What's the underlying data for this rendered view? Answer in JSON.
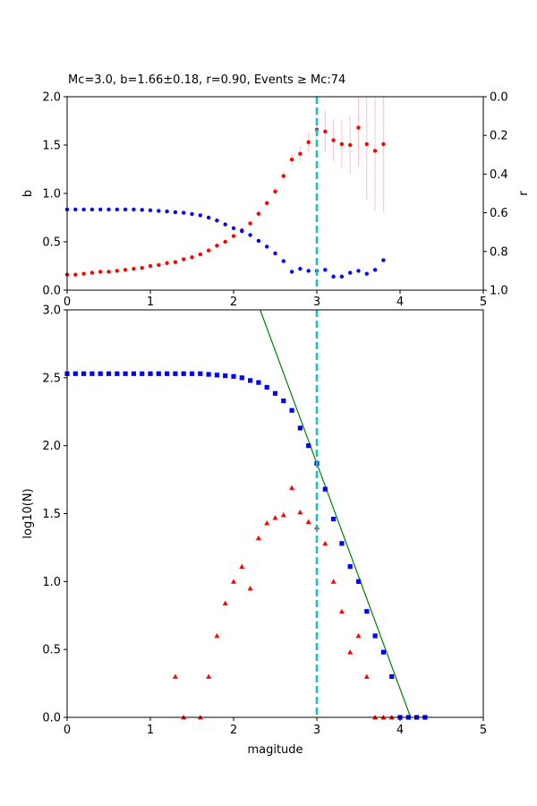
{
  "chart_data": [
    {
      "type": "scatter",
      "title": "Mc=3.0, b=1.66±0.18, r=0.90, Events ≥ Mc:74",
      "xlabel": "",
      "ylabel": "b",
      "ylabel_right": "r",
      "xlim": [
        0,
        5
      ],
      "ylim": [
        0,
        2.0
      ],
      "ylim_right": [
        1.0,
        0.0
      ],
      "x_ticks": [
        "0",
        "1",
        "2",
        "3",
        "4",
        "5"
      ],
      "y_ticks": [
        "0.0",
        "0.5",
        "1.0",
        "1.5",
        "2.0"
      ],
      "y_ticks_right": [
        "0.0",
        "0.2",
        "0.4",
        "0.6",
        "0.8",
        "1.0"
      ],
      "mc_line_x": 3.0,
      "series": [
        {
          "axis": "left",
          "color": "#ff0000",
          "x": [
            0.0,
            0.1,
            0.2,
            0.3,
            0.4,
            0.5,
            0.6,
            0.7,
            0.8,
            0.9,
            1.0,
            1.1,
            1.2,
            1.3,
            1.4,
            1.5,
            1.6,
            1.7,
            1.8,
            1.9,
            2.0,
            2.1,
            2.2,
            2.3,
            2.4,
            2.5,
            2.6,
            2.7,
            2.8,
            2.9,
            3.0,
            3.1,
            3.2,
            3.3,
            3.4,
            3.5,
            3.6,
            3.7,
            3.8
          ],
          "values": [
            0.16,
            0.16,
            0.17,
            0.18,
            0.19,
            0.19,
            0.2,
            0.21,
            0.22,
            0.23,
            0.25,
            0.26,
            0.28,
            0.29,
            0.32,
            0.34,
            0.37,
            0.41,
            0.46,
            0.5,
            0.56,
            0.62,
            0.69,
            0.79,
            0.9,
            1.02,
            1.18,
            1.35,
            1.41,
            1.53,
            1.66,
            1.64,
            1.55,
            1.51,
            1.5,
            1.68,
            1.51,
            1.44,
            1.51
          ],
          "error": [
            0.01,
            0.01,
            0.01,
            0.01,
            0.01,
            0.01,
            0.01,
            0.01,
            0.01,
            0.01,
            0.01,
            0.01,
            0.01,
            0.01,
            0.01,
            0.01,
            0.01,
            0.01,
            0.01,
            0.01,
            0.01,
            0.02,
            0.02,
            0.03,
            0.03,
            0.04,
            0.05,
            0.06,
            0.08,
            0.1,
            0.18,
            0.22,
            0.22,
            0.25,
            0.3,
            0.4,
            0.57,
            0.62,
            0.7
          ]
        },
        {
          "axis": "right",
          "color": "#0000ff",
          "x": [
            0.0,
            0.1,
            0.2,
            0.3,
            0.4,
            0.5,
            0.6,
            0.7,
            0.8,
            0.9,
            1.0,
            1.1,
            1.2,
            1.3,
            1.4,
            1.5,
            1.6,
            1.7,
            1.8,
            1.9,
            2.0,
            2.1,
            2.2,
            2.3,
            2.4,
            2.5,
            2.6,
            2.7,
            2.8,
            2.9,
            3.0,
            3.1,
            3.2,
            3.3,
            3.4,
            3.5,
            3.6,
            3.7,
            3.8
          ],
          "values": [
            0.583,
            0.583,
            0.583,
            0.583,
            0.583,
            0.583,
            0.583,
            0.583,
            0.583,
            0.585,
            0.587,
            0.59,
            0.593,
            0.597,
            0.6,
            0.606,
            0.613,
            0.625,
            0.64,
            0.66,
            0.68,
            0.695,
            0.715,
            0.745,
            0.775,
            0.81,
            0.85,
            0.905,
            0.89,
            0.9,
            0.9,
            0.895,
            0.93,
            0.93,
            0.91,
            0.9,
            0.915,
            0.895,
            0.845
          ]
        }
      ]
    },
    {
      "type": "scatter",
      "title": "",
      "xlabel": "magitude",
      "ylabel": "log10(N)",
      "xlim": [
        0,
        5
      ],
      "ylim": [
        0,
        3.0
      ],
      "x_ticks": [
        "0",
        "1",
        "2",
        "3",
        "4",
        "5"
      ],
      "y_ticks": [
        "0.0",
        "0.5",
        "1.0",
        "1.5",
        "2.0",
        "2.5",
        "3.0"
      ],
      "mc_line_x": 3.0,
      "fit_line": {
        "color": "#008000",
        "a": 6.85,
        "b": 1.66
      },
      "series": [
        {
          "marker": "square",
          "color": "#0000ff",
          "x": [
            0.0,
            0.1,
            0.2,
            0.3,
            0.4,
            0.5,
            0.6,
            0.7,
            0.8,
            0.9,
            1.0,
            1.1,
            1.2,
            1.3,
            1.4,
            1.5,
            1.6,
            1.7,
            1.8,
            1.9,
            2.0,
            2.1,
            2.2,
            2.3,
            2.4,
            2.5,
            2.6,
            2.7,
            2.8,
            2.9,
            3.0,
            3.1,
            3.2,
            3.3,
            3.4,
            3.5,
            3.6,
            3.7,
            3.8,
            3.9,
            4.0,
            4.1,
            4.2,
            4.3
          ],
          "values": [
            2.53,
            2.53,
            2.53,
            2.53,
            2.53,
            2.53,
            2.53,
            2.53,
            2.53,
            2.53,
            2.53,
            2.53,
            2.53,
            2.53,
            2.53,
            2.53,
            2.53,
            2.525,
            2.52,
            2.515,
            2.51,
            2.5,
            2.48,
            2.465,
            2.43,
            2.385,
            2.33,
            2.26,
            2.13,
            2.0,
            1.87,
            1.68,
            1.46,
            1.28,
            1.11,
            1.0,
            0.78,
            0.6,
            0.48,
            0.3,
            0.0,
            0.0,
            0.0,
            0.0
          ]
        },
        {
          "marker": "triangle",
          "color": "#ff0000",
          "x": [
            1.3,
            1.4,
            1.6,
            1.7,
            1.8,
            1.9,
            2.0,
            2.1,
            2.2,
            2.3,
            2.4,
            2.5,
            2.6,
            2.7,
            2.8,
            2.9,
            3.0,
            3.1,
            3.2,
            3.3,
            3.4,
            3.5,
            3.6,
            3.7,
            3.8,
            3.9
          ],
          "values": [
            0.3,
            0.0,
            0.0,
            0.3,
            0.6,
            0.84,
            1.0,
            1.11,
            0.95,
            1.32,
            1.43,
            1.47,
            1.49,
            1.69,
            1.51,
            1.44,
            1.4,
            1.28,
            1.0,
            0.78,
            0.48,
            0.6,
            0.3,
            0.0,
            0.0,
            0.0
          ]
        }
      ]
    }
  ]
}
